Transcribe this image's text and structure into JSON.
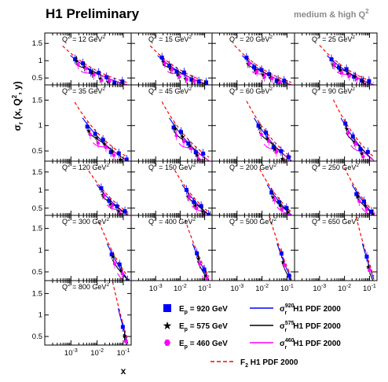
{
  "title": "H1 Preliminary",
  "subtitle": "medium & high Q",
  "subtitle_sup": "2",
  "chart_data": {
    "type": "scatter",
    "xlabel": "x",
    "ylabel": "σr (x, Q2, y)",
    "xscale": "log",
    "xlim": [
      0.0001,
      0.2
    ],
    "ylim": [
      0.3,
      1.8
    ],
    "x_ticks": [
      {
        "value": 0.001,
        "base": "10",
        "exp": "-3"
      },
      {
        "value": 0.01,
        "base": "10",
        "exp": "-2"
      },
      {
        "value": 0.1,
        "base": "10",
        "exp": "-1"
      }
    ],
    "y_ticks": [
      {
        "value": 0.5,
        "label": "0.5"
      },
      {
        "value": 1.0,
        "label": "1"
      },
      {
        "value": 1.5,
        "label": "1.5"
      }
    ],
    "panels": [
      {
        "q2": 12,
        "label": "Q2 = 12 GeV2"
      },
      {
        "q2": 15,
        "label": "Q2 = 15 GeV2"
      },
      {
        "q2": 20,
        "label": "Q2 = 20 GeV2"
      },
      {
        "q2": 25,
        "label": "Q2 = 25 GeV2"
      },
      {
        "q2": 35,
        "label": "Q2 = 35 GeV2"
      },
      {
        "q2": 45,
        "label": "Q2 = 45 GeV2"
      },
      {
        "q2": 60,
        "label": "Q2 = 60 GeV2"
      },
      {
        "q2": 90,
        "label": "Q2 = 90 GeV2"
      },
      {
        "q2": 120,
        "label": "Q2 = 120 GeV2"
      },
      {
        "q2": 150,
        "label": "Q2 = 150 GeV2"
      },
      {
        "q2": 200,
        "label": "Q2 = 200 GeV2"
      },
      {
        "q2": 250,
        "label": "Q2 = 250 GeV2"
      },
      {
        "q2": 300,
        "label": "Q2 = 300 GeV2"
      },
      {
        "q2": 400,
        "label": "Q2 = 400 GeV2"
      },
      {
        "q2": 500,
        "label": "Q2 = 500 GeV2"
      },
      {
        "q2": 650,
        "label": "Q2 = 650 GeV2"
      },
      {
        "q2": 800,
        "label": "Q2 = 800 GeV2"
      }
    ],
    "legend": {
      "placement": "bottom-right",
      "markers": [
        {
          "series": "ep920",
          "label": "Ep = 920 GeV",
          "marker": "square",
          "color": "#0000ff"
        },
        {
          "series": "ep575",
          "label": "Ep = 575 GeV",
          "marker": "star",
          "color": "#000000"
        },
        {
          "series": "ep460",
          "label": "Ep = 460 GeV",
          "marker": "hexagon",
          "color": "#ff00ff"
        }
      ],
      "curves": [
        {
          "series": "fit920",
          "label": "σr920 H1 PDF 2000",
          "color": "#0000ff",
          "style": "solid"
        },
        {
          "series": "fit575",
          "label": "σr575 H1 PDF 2000",
          "color": "#000000",
          "style": "solid"
        },
        {
          "series": "fit460",
          "label": "σr460 H1 PDF 2000",
          "color": "#ff00ff",
          "style": "solid"
        },
        {
          "series": "f2",
          "label": "F2 H1 PDF 2000",
          "color": "#ff0000",
          "style": "dashed"
        }
      ]
    }
  }
}
